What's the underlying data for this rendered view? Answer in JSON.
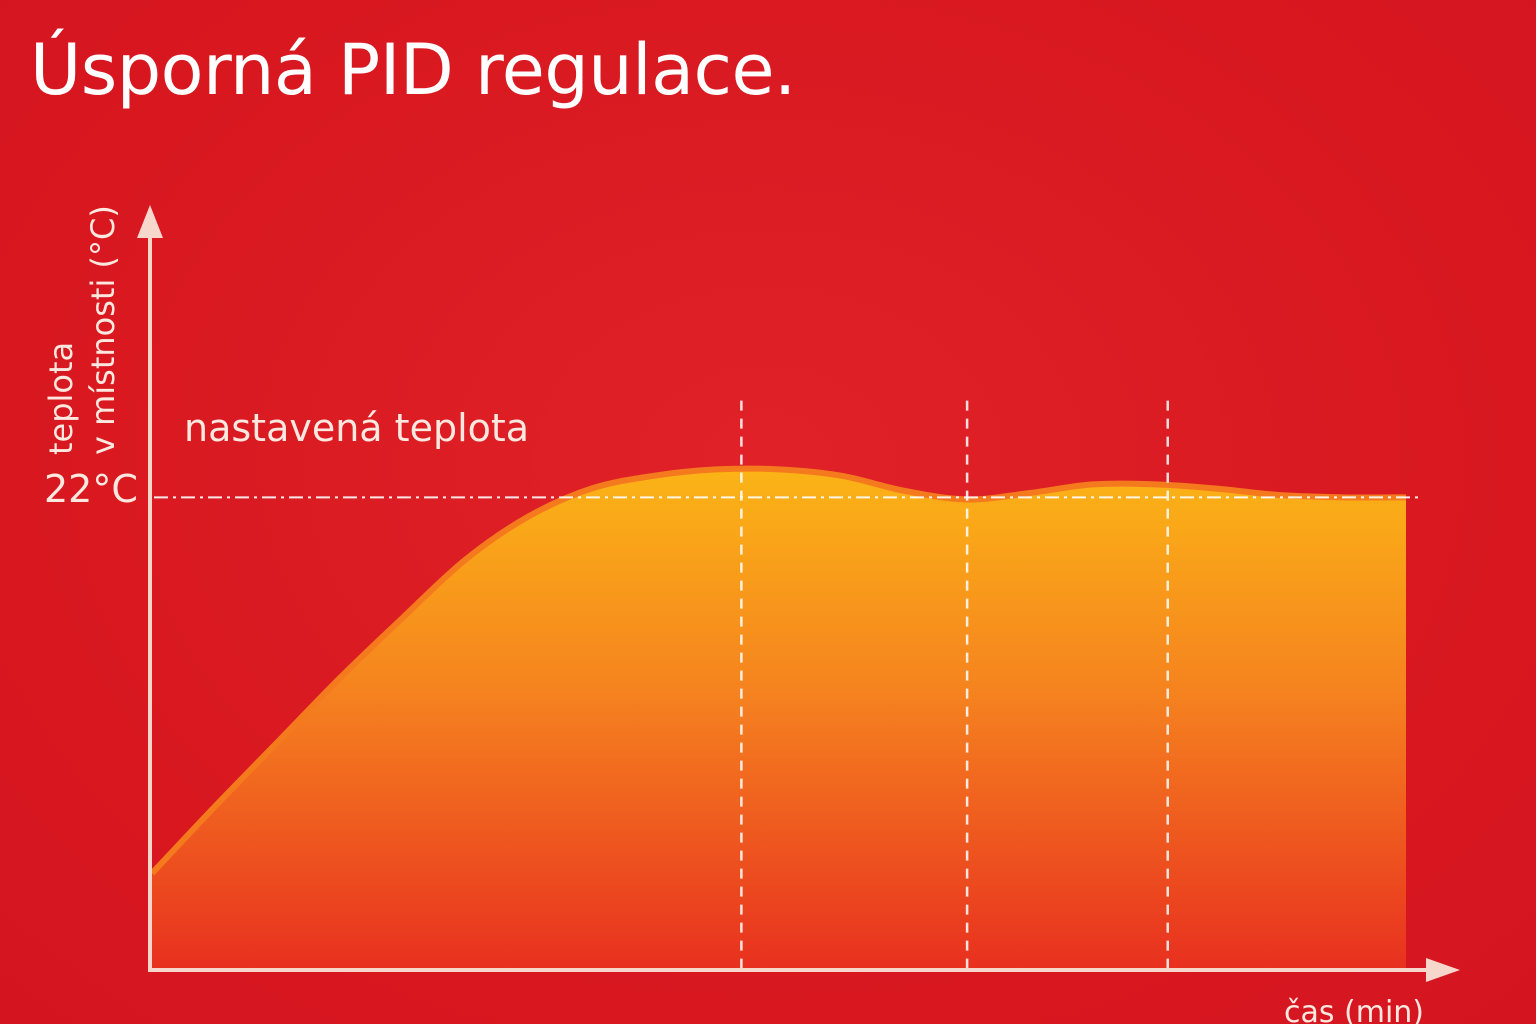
{
  "title": "Úsporná PID regulace.",
  "colors": {
    "background": "#dc1a22",
    "axis": "#f7d7cc",
    "curve": "#f57a1e",
    "fill_top": "#fbb416",
    "fill_bottom": "#e8301f",
    "guides": "#ffffff"
  },
  "chart_data": {
    "type": "area",
    "title": "",
    "xlabel": "čas (min)",
    "ylabel_lines": [
      "teplota",
      "v místnosti (°C)"
    ],
    "setpoint": {
      "label": "nastavená teplota",
      "value": 22,
      "tick_label": "22°C"
    },
    "x": [
      0,
      5,
      10,
      15,
      20,
      25,
      30,
      35,
      40,
      45,
      50,
      55,
      60,
      65,
      70,
      75,
      80,
      85,
      90,
      95,
      100
    ],
    "values": [
      4.5,
      7.6,
      10.6,
      13.6,
      16.4,
      19.1,
      21.1,
      22.4,
      23.0,
      23.3,
      23.3,
      23.0,
      22.3,
      21.9,
      22.2,
      22.6,
      22.6,
      22.4,
      22.1,
      22.0,
      22.0
    ],
    "xlim": [
      0,
      100
    ],
    "ylim": [
      0,
      35
    ],
    "vertical_guides_x": [
      47,
      65,
      81
    ],
    "grid": false,
    "legend": "none"
  }
}
